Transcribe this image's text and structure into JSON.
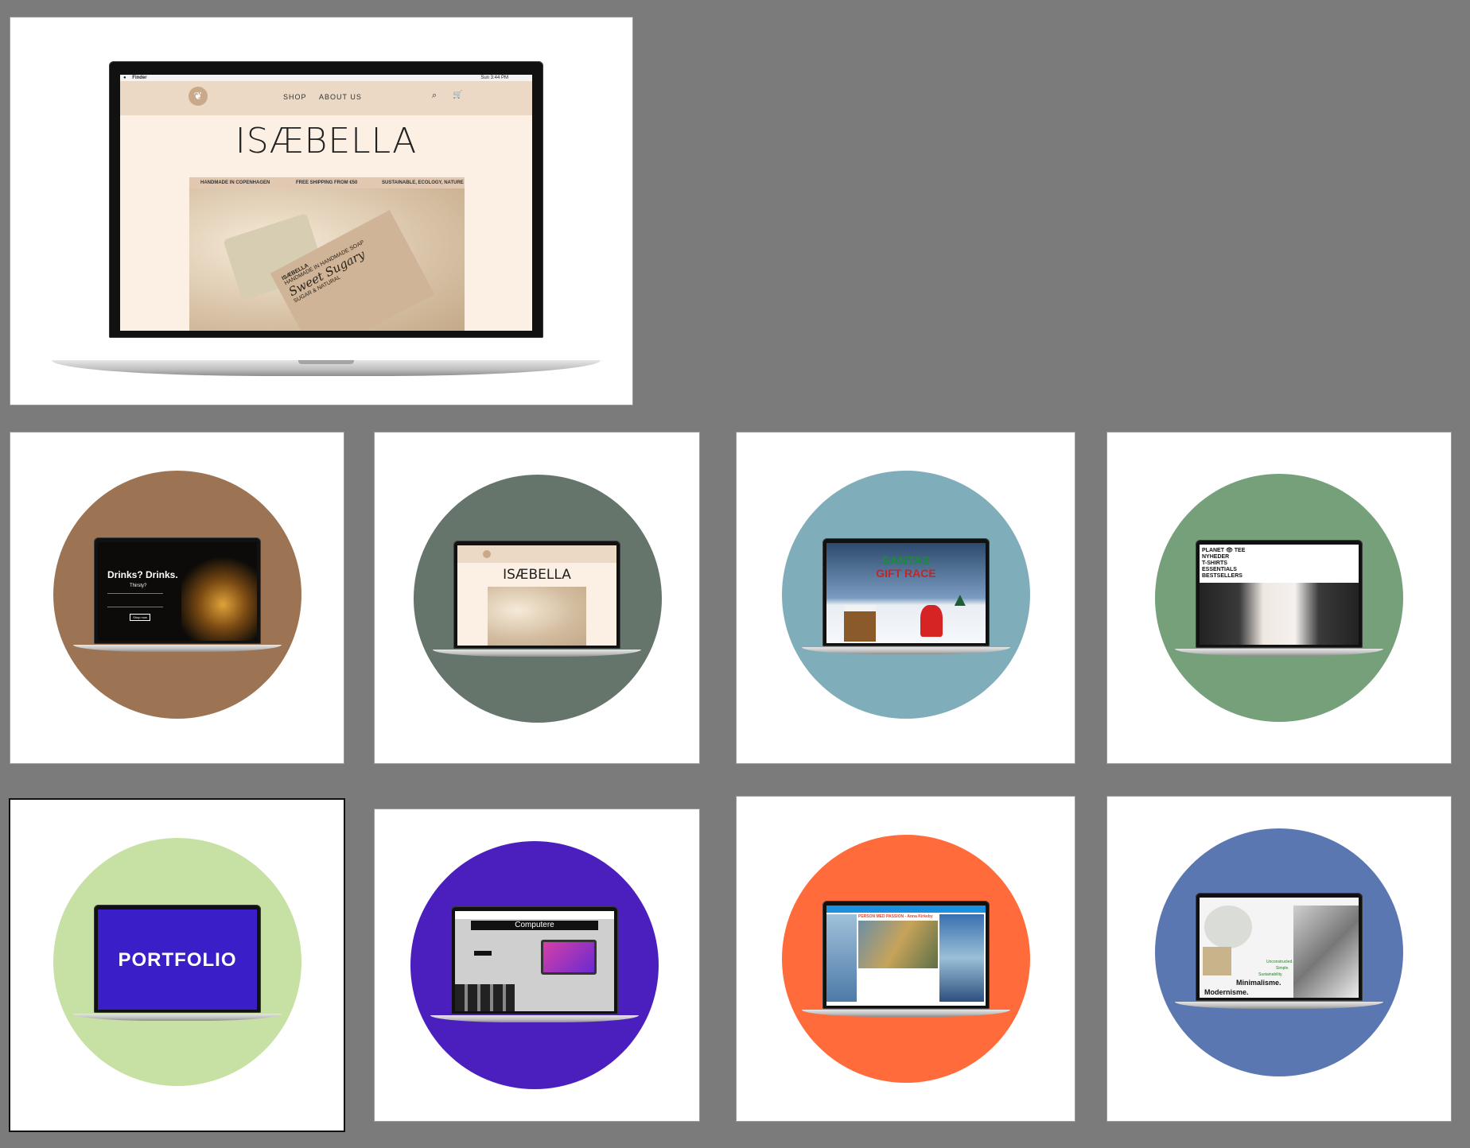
{
  "featured": {
    "menubar": {
      "app": "Finder",
      "clock": "Sun 3:44 PM"
    },
    "nav": [
      "SHOP",
      "ABOUT US"
    ],
    "icons": [
      "leaf-logo",
      "search-icon",
      "cart-icon"
    ],
    "brand": "ISÆBELLA",
    "banner": [
      "HANDMADE IN COPENHAGEN",
      "FREE SHIPPING FROM €50",
      "SUSTAINABLE, ECOLOGY, NATURE"
    ],
    "soap_label": {
      "brand": "ISÆBELLA",
      "subtitle": "HANDMADE IN HANDMADE SOAP",
      "script": "Sweet Sugary",
      "note": "SUGAR & NATURAL"
    }
  },
  "cards": [
    {
      "circle_color": "#9c7454",
      "headline": "Drinks? Drinks.",
      "sub": "Thirsty?",
      "button": "Shop now"
    },
    {
      "circle_color": "#66756c",
      "brand": "ISÆBELLA"
    },
    {
      "circle_color": "#7fadb9",
      "title_line1": "SANTAS",
      "title_line2": "GIFT RACE"
    },
    {
      "circle_color": "#75a07a",
      "menu": [
        "PLANET 👁 TEE",
        "NYHEDER",
        "T-SHIRTS",
        "ESSENTIALS",
        "BESTSELLERS"
      ]
    },
    {
      "circle_color": "#c7e0a3",
      "title": "PORTFOLIO"
    },
    {
      "circle_color": "#4b1fbd",
      "title": "Computere"
    },
    {
      "circle_color": "#ff6b3a",
      "title": "PERSON MED PASSION - Anna Kirkeby"
    },
    {
      "circle_color": "#5a77b1",
      "lines": [
        "Unconstructed.",
        "Simple.",
        "Sustainability.",
        "Minimalisme.",
        "Modernisme."
      ]
    }
  ]
}
